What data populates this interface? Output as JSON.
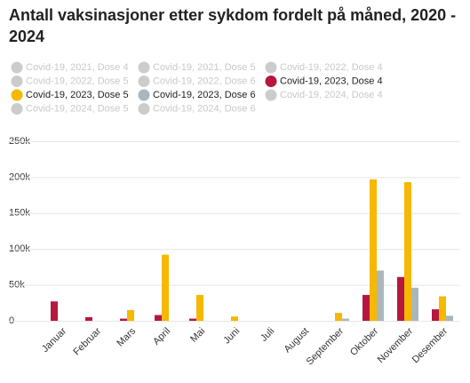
{
  "chart_data": {
    "type": "bar",
    "title": [
      "Antall vaksinasjoner etter sykdom fordelt på måned, 2020 -",
      "2024"
    ],
    "categories": [
      "Januar",
      "Februar",
      "Mars",
      "April",
      "Mai",
      "Juni",
      "Juli",
      "August",
      "September",
      "Oktober",
      "November",
      "Desember"
    ],
    "series": [
      {
        "name": "Covid-19, 2021, Dose 4",
        "color": "#cccccc",
        "visible": false,
        "values": [
          null,
          null,
          null,
          null,
          null,
          null,
          null,
          null,
          null,
          null,
          null,
          null
        ]
      },
      {
        "name": "Covid-19, 2021, Dose 5",
        "color": "#cccccc",
        "visible": false,
        "values": [
          null,
          null,
          null,
          null,
          null,
          null,
          null,
          null,
          null,
          null,
          null,
          null
        ]
      },
      {
        "name": "Covid-19, 2022, Dose 4",
        "color": "#cccccc",
        "visible": false,
        "values": [
          null,
          null,
          null,
          null,
          null,
          null,
          null,
          null,
          null,
          null,
          null,
          null
        ]
      },
      {
        "name": "Covid-19, 2022, Dose 5",
        "color": "#cccccc",
        "visible": false,
        "values": [
          null,
          null,
          null,
          null,
          null,
          null,
          null,
          null,
          null,
          null,
          null,
          null
        ]
      },
      {
        "name": "Covid-19, 2022, Dose 6",
        "color": "#cccccc",
        "visible": false,
        "values": [
          null,
          null,
          null,
          null,
          null,
          null,
          null,
          null,
          null,
          null,
          null,
          null
        ]
      },
      {
        "name": "Covid-19, 2023, Dose 4",
        "color": "#b5173f",
        "visible": true,
        "values": [
          27000,
          5000,
          3000,
          8000,
          3000,
          0,
          0,
          0,
          0,
          36000,
          61000,
          16000
        ]
      },
      {
        "name": "Covid-19, 2023, Dose 5",
        "color": "#f6b800",
        "visible": true,
        "values": [
          0,
          0,
          15000,
          92000,
          36000,
          6000,
          0,
          0,
          11000,
          197000,
          193000,
          34000
        ]
      },
      {
        "name": "Covid-19, 2023, Dose 6",
        "color": "#a9b7bd",
        "visible": true,
        "values": [
          0,
          0,
          0,
          0,
          0,
          0,
          0,
          0,
          3000,
          70000,
          46000,
          7000
        ]
      },
      {
        "name": "Covid-19, 2024, Dose 4",
        "color": "#cccccc",
        "visible": false,
        "values": [
          null,
          null,
          null,
          null,
          null,
          null,
          null,
          null,
          null,
          null,
          null,
          null
        ]
      },
      {
        "name": "Covid-19, 2024, Dose 5",
        "color": "#cccccc",
        "visible": false,
        "values": [
          null,
          null,
          null,
          null,
          null,
          null,
          null,
          null,
          null,
          null,
          null,
          null
        ]
      },
      {
        "name": "Covid-19, 2024, Dose 6",
        "color": "#cccccc",
        "visible": false,
        "values": [
          null,
          null,
          null,
          null,
          null,
          null,
          null,
          null,
          null,
          null,
          null,
          null
        ]
      }
    ],
    "ylim": [
      0,
      250000
    ],
    "yticks": [
      0,
      {
        "value": 50000,
        "label": "50k"
      },
      {
        "value": 100000,
        "label": "100k"
      },
      {
        "value": 150000,
        "label": "150k"
      },
      {
        "value": 200000,
        "label": "200k"
      },
      {
        "value": 250000,
        "label": "250k"
      }
    ],
    "grid": true
  }
}
